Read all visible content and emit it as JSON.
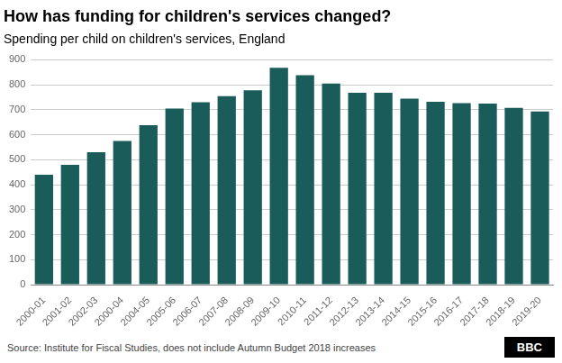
{
  "chart_data": {
    "type": "bar",
    "title": "How has funding for children's services changed?",
    "subtitle": "Spending per child on children's services, England",
    "source": "Source: Institute for Fiscal Studies, does not include Autumn Budget 2018 increases",
    "annotations": [
      "BBC"
    ],
    "categories": [
      "2000-01",
      "2001-02",
      "2002-03",
      "2000-04",
      "2004-05",
      "2005-06",
      "2006-07",
      "2007-08",
      "2008-09",
      "2009-10",
      "2010-11",
      "2011-12",
      "2012-13",
      "2013-14",
      "2014-15",
      "2015-16",
      "2016-17",
      "2017-18",
      "2018-19",
      "2019-20"
    ],
    "values": [
      440,
      480,
      530,
      575,
      638,
      705,
      730,
      755,
      778,
      868,
      838,
      805,
      768,
      768,
      745,
      732,
      727,
      725,
      708,
      693
    ],
    "color": "#1a5c5a",
    "ylim": [
      0,
      900
    ],
    "yticks": [
      0,
      100,
      200,
      300,
      400,
      500,
      600,
      700,
      800,
      900
    ],
    "grid": true
  }
}
